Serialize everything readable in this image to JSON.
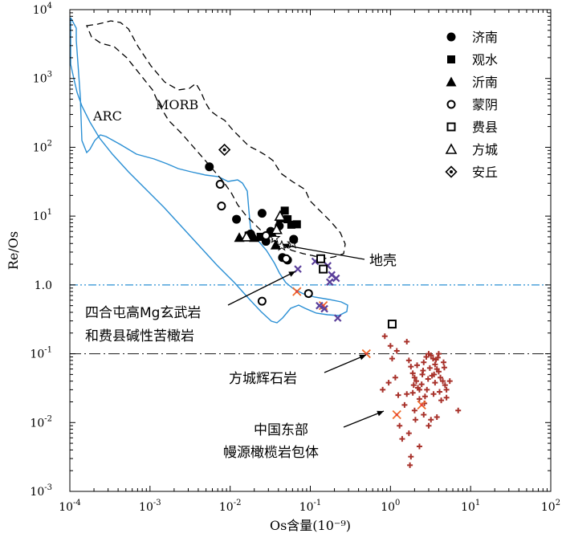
{
  "chart_data": {
    "type": "scatter",
    "xlabel": "Os含量(10⁻⁹)",
    "ylabel": "Re/Os",
    "xscale": "log",
    "yscale": "log",
    "xlim": [
      0.0001,
      100
    ],
    "ylim": [
      0.001,
      10000
    ],
    "x_ticks": [
      {
        "base": "10",
        "exp": "-4"
      },
      {
        "base": "10",
        "exp": "-3"
      },
      {
        "base": "10",
        "exp": "-2"
      },
      {
        "base": "10",
        "exp": "-1"
      },
      {
        "base": "10",
        "exp": "0"
      },
      {
        "base": "10",
        "exp": "1"
      },
      {
        "base": "10",
        "exp": "2"
      }
    ],
    "y_ticks": [
      {
        "text": "10",
        "exp": "-3"
      },
      {
        "text": "10",
        "exp": "-2"
      },
      {
        "text": "10",
        "exp": "-1"
      },
      {
        "text": "1.0",
        "exp": ""
      },
      {
        "text": "10",
        "exp": "1"
      },
      {
        "text": "10",
        "exp": "2"
      },
      {
        "text": "10",
        "exp": "3"
      },
      {
        "text": "10",
        "exp": "4"
      }
    ],
    "legend_position": "top-right",
    "legend": [
      {
        "name": "济南",
        "marker": "filled-circle"
      },
      {
        "name": "观水",
        "marker": "filled-square"
      },
      {
        "name": "沂南",
        "marker": "filled-triangle"
      },
      {
        "name": "蒙阴",
        "marker": "open-circle"
      },
      {
        "name": "费县",
        "marker": "open-square"
      },
      {
        "name": "方城",
        "marker": "open-triangle"
      },
      {
        "name": "安丘",
        "marker": "diamond-dot"
      }
    ],
    "regions": [
      {
        "name": "ARC",
        "style": "blue-solid"
      },
      {
        "name": "MORB",
        "style": "black-dashed"
      }
    ],
    "reference_lines": [
      {
        "y": 1.0,
        "style": "blue-dash-dot"
      },
      {
        "y": 0.1,
        "style": "black-dash-dot"
      }
    ],
    "annotations": [
      {
        "id": "crust",
        "text": "地壳"
      },
      {
        "id": "siheton",
        "text": "四合屯高Mg玄武岩",
        "text2": "和费县碱性苦橄岩"
      },
      {
        "id": "fangcheng",
        "text": "方城辉石岩"
      },
      {
        "id": "xenolith",
        "text": "中国东部",
        "text2": "幔源橄榄岩包体"
      }
    ],
    "series": [
      {
        "name": "济南",
        "marker": "filled-circle",
        "points": [
          [
            0.0055,
            52
          ],
          [
            0.012,
            9
          ],
          [
            0.018,
            5.5
          ],
          [
            0.025,
            11
          ],
          [
            0.028,
            4.3
          ],
          [
            0.032,
            6
          ],
          [
            0.041,
            7.2
          ],
          [
            0.045,
            2.5
          ],
          [
            0.052,
            2.3
          ],
          [
            0.062,
            4.6
          ]
        ]
      },
      {
        "name": "观水",
        "marker": "filled-square",
        "points": [
          [
            0.048,
            12
          ],
          [
            0.052,
            9
          ],
          [
            0.058,
            7.5
          ],
          [
            0.068,
            7.6
          ],
          [
            0.017,
            5.2
          ],
          [
            0.024,
            5
          ]
        ]
      },
      {
        "name": "沂南",
        "marker": "filled-triangle",
        "points": [
          [
            0.013,
            4.9
          ],
          [
            0.02,
            4.9
          ],
          [
            0.033,
            5.8
          ],
          [
            0.037,
            3.8
          ],
          [
            0.043,
            9.4
          ]
        ]
      },
      {
        "name": "蒙阴",
        "marker": "open-circle",
        "points": [
          [
            0.0075,
            29
          ],
          [
            0.0078,
            14
          ],
          [
            0.028,
            5.2
          ],
          [
            0.05,
            2.4
          ],
          [
            0.025,
            0.58
          ],
          [
            0.095,
            0.75
          ]
        ]
      },
      {
        "name": "费县",
        "marker": "open-square",
        "points": [
          [
            0.135,
            2.4
          ],
          [
            0.145,
            1.7
          ],
          [
            1.05,
            0.27
          ]
        ]
      },
      {
        "name": "方城",
        "marker": "open-triangle",
        "points": [
          [
            0.016,
            5
          ],
          [
            0.042,
            10
          ],
          [
            0.038,
            6.4
          ]
        ]
      },
      {
        "name": "安丘",
        "marker": "diamond-dot",
        "points": [
          [
            0.0085,
            92
          ]
        ]
      },
      {
        "name": "stars",
        "marker": "star",
        "points": [
          [
            0.036,
            4.8
          ],
          [
            0.044,
            3.7
          ],
          [
            0.06,
            4.0
          ]
        ]
      },
      {
        "name": "purple",
        "marker": "purple-x",
        "points": [
          [
            0.07,
            1.7
          ],
          [
            0.115,
            2.2
          ],
          [
            0.165,
            1.9
          ],
          [
            0.185,
            1.4
          ],
          [
            0.21,
            1.25
          ],
          [
            0.175,
            1.1
          ],
          [
            0.13,
            0.5
          ],
          [
            0.15,
            0.45
          ],
          [
            0.22,
            0.33
          ]
        ]
      },
      {
        "name": "orange",
        "marker": "orange-x",
        "points": [
          [
            0.068,
            0.8
          ],
          [
            0.145,
            0.5
          ],
          [
            0.5,
            0.1
          ],
          [
            2.45,
            0.018
          ],
          [
            1.2,
            0.013
          ]
        ]
      },
      {
        "name": "xenolith",
        "marker": "red-plus",
        "points": [
          [
            0.85,
            0.18
          ],
          [
            1.0,
            0.13
          ],
          [
            1.05,
            0.085
          ],
          [
            1.2,
            0.11
          ],
          [
            1.6,
            0.15
          ],
          [
            1.7,
            0.08
          ],
          [
            1.8,
            0.065
          ],
          [
            1.9,
            0.052
          ],
          [
            2.0,
            0.045
          ],
          [
            2.1,
            0.04
          ],
          [
            2.2,
            0.032
          ],
          [
            2.3,
            0.03
          ],
          [
            2.5,
            0.05
          ],
          [
            2.6,
            0.075
          ],
          [
            2.8,
            0.09
          ],
          [
            3.0,
            0.1
          ],
          [
            3.2,
            0.095
          ],
          [
            3.4,
            0.085
          ],
          [
            3.6,
            0.07
          ],
          [
            3.8,
            0.06
          ],
          [
            4.0,
            0.055
          ],
          [
            4.2,
            0.045
          ],
          [
            4.5,
            0.04
          ],
          [
            4.8,
            0.035
          ],
          [
            5.0,
            0.03
          ],
          [
            3.1,
            0.062
          ],
          [
            3.3,
            0.048
          ],
          [
            3.6,
            0.038
          ],
          [
            4.1,
            0.028
          ],
          [
            2.7,
            0.024
          ],
          [
            2.3,
            0.022
          ],
          [
            1.9,
            0.027
          ],
          [
            1.6,
            0.026
          ],
          [
            1.5,
            0.018
          ],
          [
            2.0,
            0.015
          ],
          [
            2.6,
            0.013
          ],
          [
            3.2,
            0.011
          ],
          [
            3.8,
            0.012
          ],
          [
            1.3,
            0.009
          ],
          [
            1.7,
            0.007
          ],
          [
            2.3,
            0.0045
          ],
          [
            1.8,
            0.0032
          ],
          [
            3.0,
            0.009
          ],
          [
            4.3,
            0.021
          ],
          [
            5.0,
            0.023
          ],
          [
            2.15,
            0.068
          ],
          [
            2.45,
            0.036
          ],
          [
            2.95,
            0.043
          ],
          [
            3.5,
            0.05
          ],
          [
            2.85,
            0.03
          ],
          [
            1.75,
            0.0024
          ],
          [
            1.4,
            0.0058
          ],
          [
            7.0,
            0.015
          ],
          [
            4.6,
            0.075
          ],
          [
            3.9,
            0.088
          ],
          [
            1.15,
            0.045
          ],
          [
            0.95,
            0.038
          ],
          [
            0.8,
            0.03
          ],
          [
            1.25,
            0.025
          ],
          [
            3.7,
            0.082
          ],
          [
            4.0,
            0.1
          ],
          [
            2.55,
            0.057
          ],
          [
            1.95,
            0.035
          ],
          [
            3.45,
            0.026
          ],
          [
            2.65,
            0.019
          ],
          [
            4.7,
            0.063
          ],
          [
            5.5,
            0.04
          ],
          [
            2.05,
            0.011
          ]
        ]
      }
    ]
  }
}
